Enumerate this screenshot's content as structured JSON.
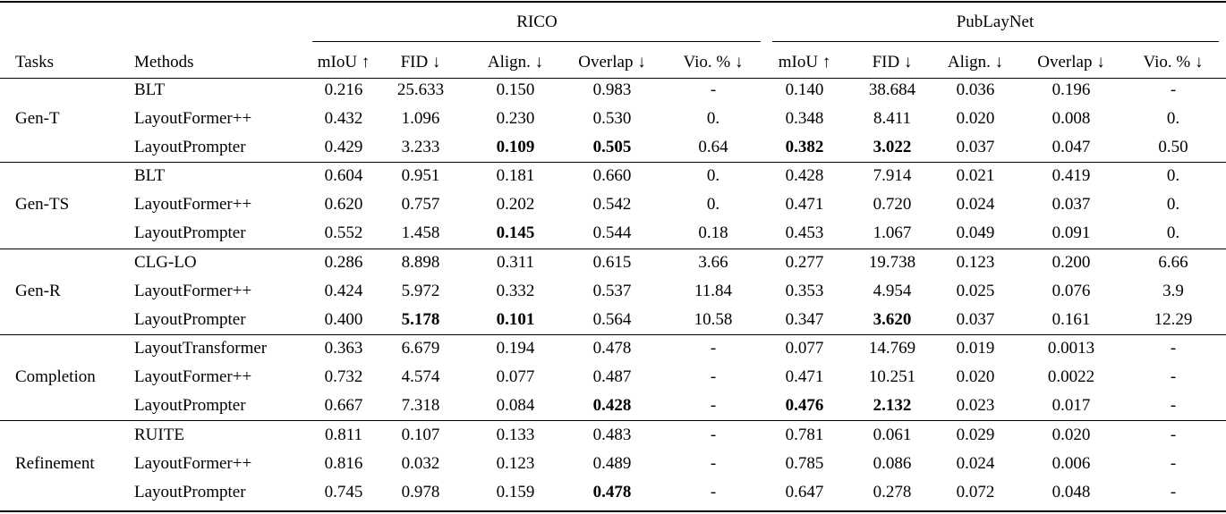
{
  "table": {
    "groups_header": [
      "RICO",
      "PubLayNet"
    ],
    "columns": [
      "Tasks",
      "Methods",
      "mIoU ↑",
      "FID ↓",
      "Align. ↓",
      "Overlap ↓",
      "Vio. % ↓",
      "mIoU ↑",
      "FID ↓",
      "Align. ↓",
      "Overlap ↓",
      "Vio. % ↓"
    ],
    "groups": [
      {
        "task": "Gen-T",
        "rows": [
          {
            "method": "BLT",
            "values": [
              "0.216",
              "25.633",
              "0.150",
              "0.983",
              "-",
              "0.140",
              "38.684",
              "0.036",
              "0.196",
              "-"
            ],
            "bold": []
          },
          {
            "method": "LayoutFormer++",
            "values": [
              "0.432",
              "1.096",
              "0.230",
              "0.530",
              "0.",
              "0.348",
              "8.411",
              "0.020",
              "0.008",
              "0."
            ],
            "bold": []
          },
          {
            "method": "LayoutPrompter",
            "values": [
              "0.429",
              "3.233",
              "0.109",
              "0.505",
              "0.64",
              "0.382",
              "3.022",
              "0.037",
              "0.047",
              "0.50"
            ],
            "bold": [
              2,
              3,
              5,
              6
            ]
          }
        ]
      },
      {
        "task": "Gen-TS",
        "rows": [
          {
            "method": "BLT",
            "values": [
              "0.604",
              "0.951",
              "0.181",
              "0.660",
              "0.",
              "0.428",
              "7.914",
              "0.021",
              "0.419",
              "0."
            ],
            "bold": []
          },
          {
            "method": "LayoutFormer++",
            "values": [
              "0.620",
              "0.757",
              "0.202",
              "0.542",
              "0.",
              "0.471",
              "0.720",
              "0.024",
              "0.037",
              "0."
            ],
            "bold": []
          },
          {
            "method": "LayoutPrompter",
            "values": [
              "0.552",
              "1.458",
              "0.145",
              "0.544",
              "0.18",
              "0.453",
              "1.067",
              "0.049",
              "0.091",
              "0."
            ],
            "bold": [
              2
            ]
          }
        ]
      },
      {
        "task": "Gen-R",
        "rows": [
          {
            "method": "CLG-LO",
            "values": [
              "0.286",
              "8.898",
              "0.311",
              "0.615",
              "3.66",
              "0.277",
              "19.738",
              "0.123",
              "0.200",
              "6.66"
            ],
            "bold": []
          },
          {
            "method": "LayoutFormer++",
            "values": [
              "0.424",
              "5.972",
              "0.332",
              "0.537",
              "11.84",
              "0.353",
              "4.954",
              "0.025",
              "0.076",
              "3.9"
            ],
            "bold": []
          },
          {
            "method": "LayoutPrompter",
            "values": [
              "0.400",
              "5.178",
              "0.101",
              "0.564",
              "10.58",
              "0.347",
              "3.620",
              "0.037",
              "0.161",
              "12.29"
            ],
            "bold": [
              1,
              2,
              6
            ]
          }
        ]
      },
      {
        "task": "Completion",
        "rows": [
          {
            "method": "LayoutTransformer",
            "values": [
              "0.363",
              "6.679",
              "0.194",
              "0.478",
              "-",
              "0.077",
              "14.769",
              "0.019",
              "0.0013",
              "-"
            ],
            "bold": []
          },
          {
            "method": "LayoutFormer++",
            "values": [
              "0.732",
              "4.574",
              "0.077",
              "0.487",
              "-",
              "0.471",
              "10.251",
              "0.020",
              "0.0022",
              "-"
            ],
            "bold": []
          },
          {
            "method": "LayoutPrompter",
            "values": [
              "0.667",
              "7.318",
              "0.084",
              "0.428",
              "-",
              "0.476",
              "2.132",
              "0.023",
              "0.017",
              "-"
            ],
            "bold": [
              3,
              5,
              6
            ]
          }
        ]
      },
      {
        "task": "Refinement",
        "rows": [
          {
            "method": "RUITE",
            "values": [
              "0.811",
              "0.107",
              "0.133",
              "0.483",
              "-",
              "0.781",
              "0.061",
              "0.029",
              "0.020",
              "-"
            ],
            "bold": []
          },
          {
            "method": "LayoutFormer++",
            "values": [
              "0.816",
              "0.032",
              "0.123",
              "0.489",
              "-",
              "0.785",
              "0.086",
              "0.024",
              "0.006",
              "-"
            ],
            "bold": []
          },
          {
            "method": "LayoutPrompter",
            "values": [
              "0.745",
              "0.978",
              "0.159",
              "0.478",
              "-",
              "0.647",
              "0.278",
              "0.072",
              "0.048",
              "-"
            ],
            "bold": [
              3
            ]
          }
        ]
      }
    ]
  }
}
